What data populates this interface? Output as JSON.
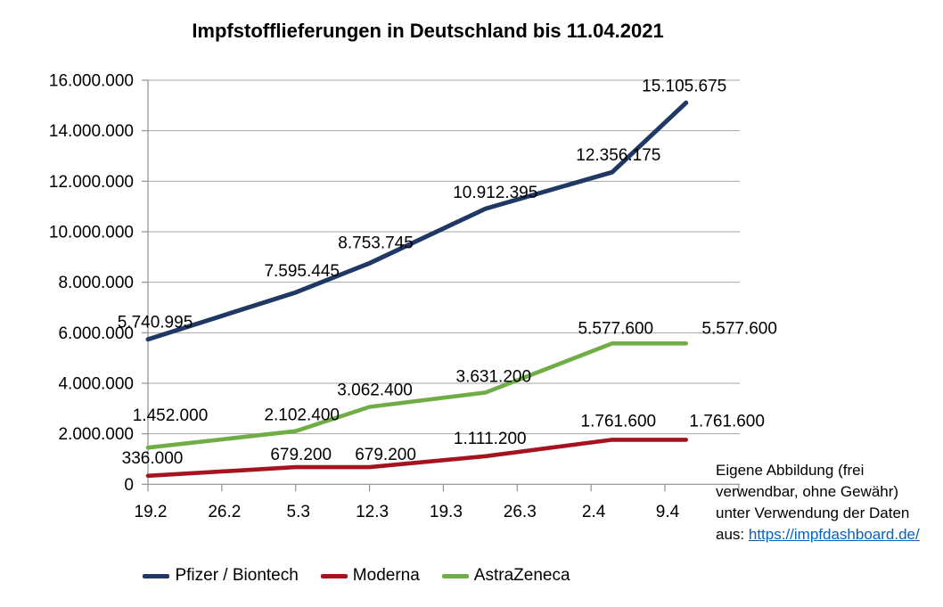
{
  "chart_data": {
    "type": "line",
    "title": "Impfstofflieferungen in Deutschland bis 11.04.2021",
    "xlabel": "",
    "ylabel": "",
    "ylim": [
      0,
      16000000
    ],
    "y_step": 2000000,
    "grid": true,
    "legend_position": "bottom",
    "x_tick_labels": [
      "19.2",
      "26.2",
      "5.3",
      "12.3",
      "19.3",
      "26.3",
      "2.4",
      "9.4"
    ],
    "y_tick_labels": [
      "0",
      "2.000.000",
      "4.000.000",
      "6.000.000",
      "8.000.000",
      "10.000.000",
      "12.000.000",
      "14.000.000",
      "16.000.000"
    ],
    "series": [
      {
        "name": "Pfizer / Biontech",
        "color": "#1F3864",
        "points": [
          {
            "day": 0,
            "value": 5740995,
            "label": "5.740.995"
          },
          {
            "day": 14,
            "value": 7595445,
            "label": "7.595.445"
          },
          {
            "day": 21,
            "value": 8753745,
            "label": "8.753.745"
          },
          {
            "day": 32,
            "value": 10912395,
            "label": "10.912.395"
          },
          {
            "day": 44,
            "value": 12356175,
            "label": "12.356.175"
          },
          {
            "day": 51,
            "value": 15105675,
            "label": "15.105.675"
          }
        ]
      },
      {
        "name": "Moderna",
        "color": "#A5131F",
        "points": [
          {
            "day": 0,
            "value": 336000,
            "label": "336.000"
          },
          {
            "day": 14,
            "value": 679200,
            "label": "679.200"
          },
          {
            "day": 21,
            "value": 679200,
            "label": "679.200"
          },
          {
            "day": 32,
            "value": 1111200,
            "label": "1.111.200"
          },
          {
            "day": 44,
            "value": 1761600,
            "label": "1.761.600"
          },
          {
            "day": 51,
            "value": 1761600,
            "label": "1.761.600"
          }
        ]
      },
      {
        "name": "AstraZeneca",
        "color": "#70AD47",
        "points": [
          {
            "day": 0,
            "value": 1452000,
            "label": "1.452.000"
          },
          {
            "day": 14,
            "value": 2102400,
            "label": "2.102.400"
          },
          {
            "day": 21,
            "value": 3062400,
            "label": "3.062.400"
          },
          {
            "day": 32,
            "value": 3631200,
            "label": "3.631.200"
          },
          {
            "day": 44,
            "value": 5577600,
            "label": "5.577.600"
          },
          {
            "day": 51,
            "value": 5577600,
            "label": "5.577.600"
          }
        ]
      }
    ]
  },
  "annotation": {
    "lines": [
      "Eigene Abbildung (frei",
      "verwendbar, ohne Gewähr)",
      "unter Verwendung der Daten"
    ],
    "line4_prefix": "aus: ",
    "link_text": "https://impfdashboard.de/"
  },
  "colors": {
    "gridline": "#A6A6A6",
    "axis": "#8F8F8F",
    "link": "#0563C1"
  }
}
